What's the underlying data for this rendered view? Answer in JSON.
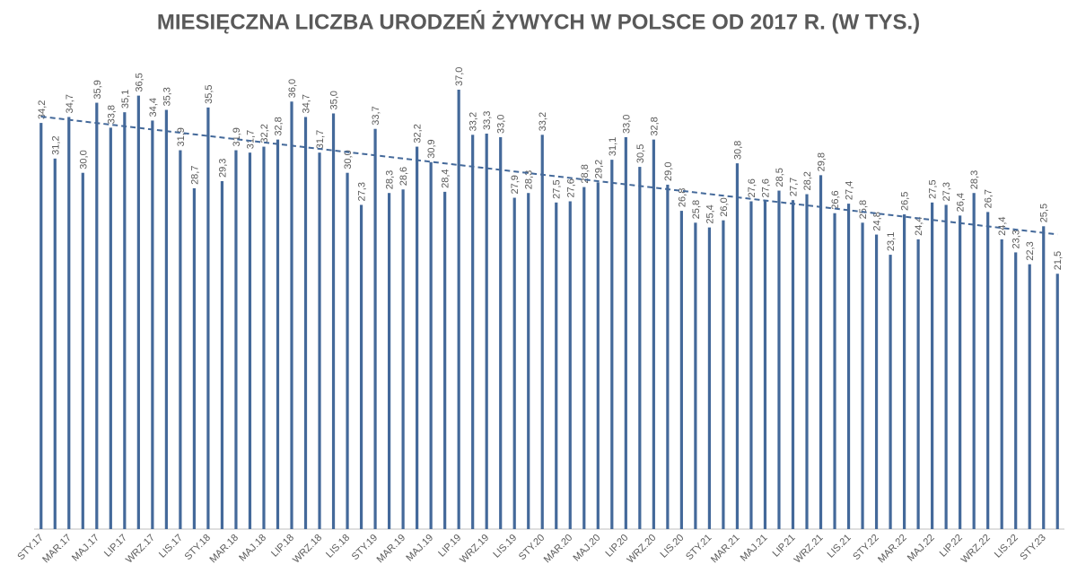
{
  "chart_data": {
    "type": "bar",
    "title": "MIESIĘCZNA LICZBA URODZEŃ ŻYWYCH W POLSCE OD 2017 R. (W TYS.)",
    "categories": [
      "STY.17",
      null,
      "MAR.17",
      null,
      "MAJ.17",
      null,
      "LIP.17",
      null,
      "WRZ.17",
      null,
      "LIS.17",
      null,
      "STY.18",
      null,
      "MAR.18",
      null,
      "MAJ.18",
      null,
      "LIP.18",
      null,
      "WRZ.18",
      null,
      "LIS.18",
      null,
      "STY.19",
      null,
      "MAR.19",
      null,
      "MAJ.19",
      null,
      "LIP.19",
      null,
      "WRZ.19",
      null,
      "LIS.19",
      null,
      "STY.20",
      null,
      "MAR.20",
      null,
      "MAJ.20",
      null,
      "LIP.20",
      null,
      "WRZ.20",
      null,
      "LIS.20",
      null,
      "STY.21",
      null,
      "MAR.21",
      null,
      "MAJ.21",
      null,
      "LIP.21",
      null,
      "WRZ.21",
      null,
      "LIS.21",
      null,
      "STY.22",
      null,
      "MAR.22",
      null,
      "MAJ.22",
      null,
      "LIP.22",
      null,
      "WRZ.22",
      null,
      "LIS.22",
      null,
      "STY.23",
      null
    ],
    "values": [
      34.2,
      31.2,
      34.7,
      30.0,
      35.9,
      33.8,
      35.1,
      36.5,
      34.4,
      35.3,
      31.9,
      28.7,
      35.5,
      29.3,
      31.9,
      31.7,
      32.2,
      32.8,
      36.0,
      34.7,
      31.7,
      35.0,
      30.0,
      27.3,
      33.7,
      28.3,
      28.6,
      32.2,
      30.9,
      28.4,
      37.0,
      33.2,
      33.3,
      33.0,
      27.9,
      28.3,
      33.2,
      27.5,
      27.6,
      28.8,
      29.2,
      31.1,
      33.0,
      30.5,
      32.8,
      29.0,
      26.8,
      25.8,
      25.4,
      26.0,
      30.8,
      27.6,
      27.6,
      28.5,
      27.7,
      28.2,
      29.8,
      26.6,
      27.4,
      25.8,
      24.8,
      23.1,
      26.5,
      24.4,
      27.5,
      27.3,
      26.4,
      28.3,
      26.7,
      24.4,
      23.3,
      22.3,
      25.5,
      21.5
    ],
    "value_labels": [
      "34,2",
      "31,2",
      "34,7",
      "30,0",
      "35,9",
      "33,8",
      "35,1",
      "36,5",
      "34,4",
      "35,3",
      "31,9",
      "28,7",
      "35,5",
      "29,3",
      "31,9",
      "31,7",
      "32,2",
      "32,8",
      "36,0",
      "34,7",
      "31,7",
      "35,0",
      "30,0",
      "27,3",
      "33,7",
      "28,3",
      "28,6",
      "32,2",
      "30,9",
      "28,4",
      "37,0",
      "33,2",
      "33,3",
      "33,0",
      "27,9",
      "28,3",
      "33,2",
      "27,5",
      "27,6",
      "28,8",
      "29,2",
      "31,1",
      "33,0",
      "30,5",
      "32,8",
      "29,0",
      "26,8",
      "25,8",
      "25,4",
      "26,0",
      "30,8",
      "27,6",
      "27,6",
      "28,5",
      "27,7",
      "28,2",
      "29,8",
      "26,6",
      "27,4",
      "25,8",
      "24,8",
      "23,1",
      "26,5",
      "24,4",
      "27,5",
      "27,3",
      "26,4",
      "28,3",
      "26,7",
      "24,4",
      "23,3",
      "22,3",
      "25,5",
      "21,5"
    ],
    "color": "#44699a",
    "ylim": [
      0,
      37
    ],
    "trendline": true
  }
}
